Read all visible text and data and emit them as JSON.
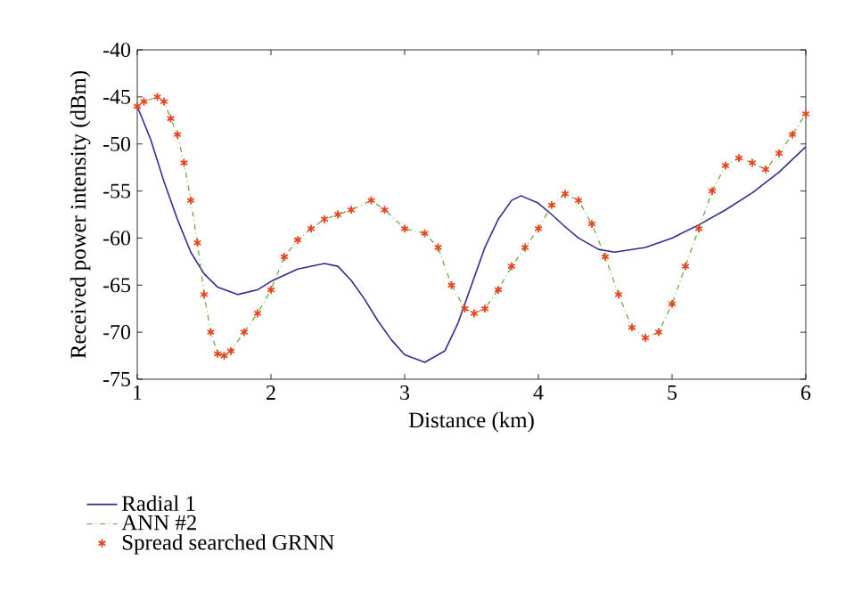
{
  "chart_data": {
    "type": "line",
    "xlabel": "Distance (km)",
    "ylabel": "Received power intensity (dBm)",
    "xlim": [
      1,
      6
    ],
    "ylim": [
      -75,
      -40
    ],
    "xticks": [
      1,
      2,
      3,
      4,
      5,
      6
    ],
    "yticks": [
      -75,
      -70,
      -65,
      -60,
      -55,
      -50,
      -45,
      -40
    ],
    "grid": false,
    "legend": "bottom",
    "series": [
      {
        "name": "Radial 1",
        "color": "#2e2e92",
        "marker": "none",
        "line_style": "solid",
        "x": [
          1,
          1.1,
          1.2,
          1.3,
          1.4,
          1.5,
          1.6,
          1.75,
          1.9,
          2.0,
          2.2,
          2.4,
          2.5,
          2.6,
          2.7,
          2.8,
          2.9,
          3.0,
          3.15,
          3.3,
          3.4,
          3.5,
          3.6,
          3.7,
          3.8,
          3.87,
          4.0,
          4.1,
          4.2,
          4.3,
          4.45,
          4.57,
          4.8,
          5.0,
          5.2,
          5.4,
          5.6,
          5.8,
          6.0
        ],
        "values": [
          -46,
          -49.5,
          -54,
          -58,
          -61.5,
          -63.8,
          -65.2,
          -66,
          -65.5,
          -64.6,
          -63.3,
          -62.7,
          -63,
          -64.5,
          -66.5,
          -68.8,
          -70.8,
          -72.4,
          -73.2,
          -72,
          -69,
          -65,
          -61,
          -58,
          -56,
          -55.5,
          -56.3,
          -57.5,
          -58.8,
          -60,
          -61.2,
          -61.5,
          -61,
          -60,
          -58.6,
          -57,
          -55.2,
          -53,
          -50.3
        ]
      },
      {
        "name": "ANN #2",
        "color": "#5aa832",
        "marker": "none",
        "line_style": "dashed",
        "x": [
          1,
          1.05,
          1.15,
          1.2,
          1.25,
          1.3,
          1.35,
          1.4,
          1.45,
          1.5,
          1.55,
          1.6,
          1.65,
          1.7,
          1.8,
          1.9,
          2.0,
          2.1,
          2.2,
          2.3,
          2.4,
          2.5,
          2.6,
          2.75,
          2.85,
          3.0,
          3.15,
          3.25,
          3.35,
          3.45,
          3.52,
          3.6,
          3.7,
          3.8,
          3.9,
          4.0,
          4.1,
          4.2,
          4.3,
          4.4,
          4.5,
          4.6,
          4.7,
          4.8,
          4.9,
          5.0,
          5.1,
          5.2,
          5.3,
          5.4,
          5.5,
          5.6,
          5.7,
          5.8,
          5.9,
          6.0
        ],
        "values": [
          -46,
          -45.5,
          -45,
          -45.5,
          -47.3,
          -49,
          -52,
          -56,
          -60.5,
          -66,
          -70,
          -72.3,
          -72.5,
          -72,
          -70,
          -68,
          -65.5,
          -62,
          -60.2,
          -59,
          -58,
          -57.5,
          -57,
          -56,
          -57,
          -59,
          -59.5,
          -61,
          -65,
          -67.5,
          -68,
          -67.5,
          -65.5,
          -63,
          -61,
          -59,
          -56.5,
          -55.3,
          -56,
          -58.5,
          -62,
          -66,
          -69.5,
          -70.6,
          -70,
          -67,
          -63,
          -59,
          -55,
          -52.3,
          -51.5,
          -52,
          -52.7,
          -51,
          -49,
          -46.8
        ]
      },
      {
        "name": "Spread searched GRNN",
        "type": "scatter",
        "color": "#e8431b",
        "marker": "cross",
        "x": [
          1,
          1.05,
          1.15,
          1.2,
          1.25,
          1.3,
          1.35,
          1.4,
          1.45,
          1.5,
          1.55,
          1.6,
          1.65,
          1.7,
          1.8,
          1.9,
          2.0,
          2.1,
          2.2,
          2.3,
          2.4,
          2.5,
          2.6,
          2.75,
          2.85,
          3.0,
          3.15,
          3.25,
          3.35,
          3.45,
          3.52,
          3.6,
          3.7,
          3.8,
          3.9,
          4.0,
          4.1,
          4.2,
          4.3,
          4.4,
          4.5,
          4.6,
          4.7,
          4.8,
          4.9,
          5.0,
          5.1,
          5.2,
          5.3,
          5.4,
          5.5,
          5.6,
          5.7,
          5.8,
          5.9,
          6.0
        ],
        "values": [
          -46,
          -45.5,
          -45,
          -45.5,
          -47.3,
          -49,
          -52,
          -56,
          -60.5,
          -66,
          -70,
          -72.3,
          -72.5,
          -72,
          -70,
          -68,
          -65.5,
          -62,
          -60.2,
          -59,
          -58,
          -57.5,
          -57,
          -56,
          -57,
          -59,
          -59.5,
          -61,
          -65,
          -67.5,
          -68,
          -67.5,
          -65.5,
          -63,
          -61,
          -59,
          -56.5,
          -55.3,
          -56,
          -58.5,
          -62,
          -66,
          -69.5,
          -70.6,
          -70,
          -67,
          -63,
          -59,
          -55,
          -52.3,
          -51.5,
          -52,
          -52.7,
          -51,
          -49,
          -46.8
        ]
      }
    ]
  }
}
